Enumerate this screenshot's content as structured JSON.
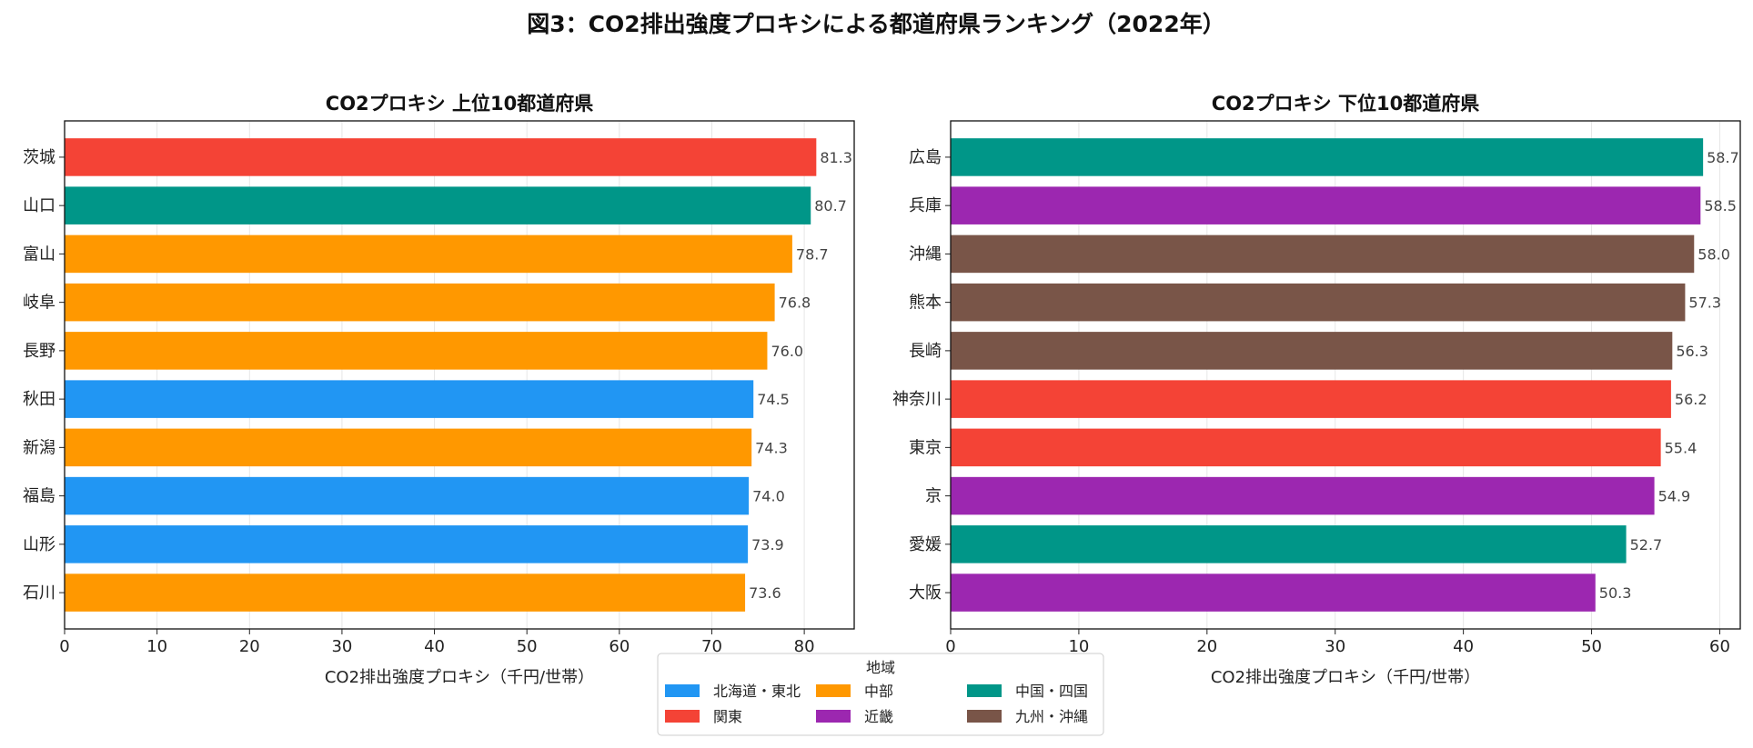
{
  "suptitle": "図3：CO2排出強度プロキシによる都道府県ランキング（2022年）",
  "region_colors": {
    "北海道・東北": "#2196F3",
    "関東": "#F44336",
    "中部": "#FF9800",
    "近畿": "#9C27B0",
    "中国・四国": "#009688",
    "九州・沖縄": "#795548"
  },
  "chart_data": [
    {
      "type": "bar",
      "orientation": "horizontal",
      "title": "CO2プロキシ 上位10都道府県",
      "xlabel": "CO2排出強度プロキシ（千円/世帯）",
      "ylabel": "",
      "xlim": [
        0,
        85.4
      ],
      "xticks": [
        0,
        10,
        20,
        30,
        40,
        50,
        60,
        70,
        80
      ],
      "grid": "vertical",
      "categories": [
        "茨城",
        "山口",
        "富山",
        "岐阜",
        "長野",
        "秋田",
        "新潟",
        "福島",
        "山形",
        "石川"
      ],
      "values": [
        81.3,
        80.7,
        78.7,
        76.8,
        76.0,
        74.5,
        74.3,
        74.0,
        73.9,
        73.6
      ],
      "regions": [
        "関東",
        "中国・四国",
        "中部",
        "中部",
        "中部",
        "北海道・東北",
        "中部",
        "北海道・東北",
        "北海道・東北",
        "中部"
      ]
    },
    {
      "type": "bar",
      "orientation": "horizontal",
      "title": "CO2プロキシ 下位10都道府県",
      "xlabel": "CO2排出強度プロキシ（千円/世帯）",
      "ylabel": "",
      "xlim": [
        0,
        61.6
      ],
      "xticks": [
        0,
        10,
        20,
        30,
        40,
        50,
        60
      ],
      "grid": "vertical",
      "categories": [
        "広島",
        "兵庫",
        "沖縄",
        "熊本",
        "長崎",
        "神奈川",
        "東京",
        "京",
        "愛媛",
        "大阪"
      ],
      "values": [
        58.7,
        58.5,
        58.0,
        57.3,
        56.3,
        56.2,
        55.4,
        54.9,
        52.7,
        50.3
      ],
      "regions": [
        "中国・四国",
        "近畿",
        "九州・沖縄",
        "九州・沖縄",
        "九州・沖縄",
        "関東",
        "関東",
        "近畿",
        "中国・四国",
        "近畿"
      ]
    }
  ],
  "legend": {
    "title": "地域",
    "placement": "bottom-center",
    "entries": [
      "北海道・東北",
      "中部",
      "中国・四国",
      "関東",
      "近畿",
      "九州・沖縄"
    ]
  }
}
